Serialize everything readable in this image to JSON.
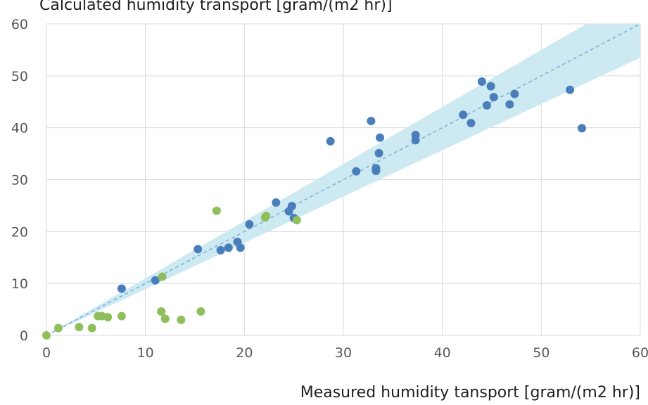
{
  "chart_data": {
    "type": "scatter",
    "title": "",
    "ylabel": "Calculated  humidity transport [gram/(m2 hr)]",
    "xlabel": "Measured humidity tansport [gram/(m2 hr)]",
    "xlim": [
      0,
      60
    ],
    "ylim": [
      0,
      60
    ],
    "xticks": [
      "0",
      "10",
      "20",
      "30",
      "40",
      "50",
      "60"
    ],
    "yticks": [
      "0",
      "10",
      "20",
      "30",
      "40",
      "50",
      "60"
    ],
    "grid": true,
    "legend": "none",
    "reference_line": {
      "x": [
        0,
        60
      ],
      "y": [
        0,
        60
      ],
      "style": "dashed",
      "color": "#7fb3d8"
    },
    "confidence_band": {
      "x": [
        0,
        60
      ],
      "lower": [
        0,
        53.5
      ],
      "upper": [
        0,
        66
      ],
      "color": "#cde9f2"
    },
    "series": [
      {
        "color": "#4a7ebb",
        "points": [
          [
            7.6,
            9.0
          ],
          [
            11.0,
            10.6
          ],
          [
            15.3,
            16.6
          ],
          [
            17.6,
            16.4
          ],
          [
            18.4,
            16.9
          ],
          [
            19.3,
            18.0
          ],
          [
            19.6,
            16.9
          ],
          [
            20.5,
            21.4
          ],
          [
            23.2,
            25.6
          ],
          [
            24.5,
            23.9
          ],
          [
            24.8,
            24.9
          ],
          [
            25.0,
            22.6
          ],
          [
            28.7,
            37.4
          ],
          [
            31.3,
            31.6
          ],
          [
            32.8,
            41.3
          ],
          [
            33.3,
            32.2
          ],
          [
            33.3,
            31.7
          ],
          [
            33.6,
            35.1
          ],
          [
            33.7,
            38.1
          ],
          [
            37.3,
            38.6
          ],
          [
            37.3,
            37.6
          ],
          [
            42.1,
            42.5
          ],
          [
            42.9,
            40.9
          ],
          [
            44.0,
            48.9
          ],
          [
            44.5,
            44.3
          ],
          [
            44.9,
            48.0
          ],
          [
            45.2,
            45.9
          ],
          [
            46.8,
            44.5
          ],
          [
            47.3,
            46.5
          ],
          [
            52.9,
            47.3
          ],
          [
            54.1,
            39.9
          ]
        ]
      },
      {
        "color": "#8fbf5a",
        "points": [
          [
            0.0,
            0.0
          ],
          [
            1.2,
            1.4
          ],
          [
            3.3,
            1.6
          ],
          [
            4.6,
            1.4
          ],
          [
            5.2,
            3.7
          ],
          [
            5.6,
            3.7
          ],
          [
            6.2,
            3.5
          ],
          [
            7.6,
            3.7
          ],
          [
            11.6,
            4.6
          ],
          [
            11.7,
            11.3
          ],
          [
            12.0,
            3.2
          ],
          [
            13.6,
            3.0
          ],
          [
            15.6,
            4.6
          ],
          [
            17.2,
            24.0
          ],
          [
            22.1,
            22.7
          ],
          [
            22.2,
            23.0
          ],
          [
            25.3,
            22.2
          ]
        ]
      }
    ]
  }
}
